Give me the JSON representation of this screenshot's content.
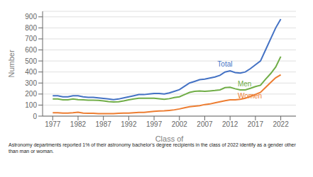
{
  "chart_data": {
    "type": "line",
    "x": [
      1977,
      1978,
      1979,
      1980,
      1981,
      1982,
      1983,
      1984,
      1985,
      1986,
      1987,
      1988,
      1989,
      1990,
      1991,
      1992,
      1993,
      1994,
      1995,
      1996,
      1997,
      1998,
      1999,
      2000,
      2001,
      2002,
      2003,
      2004,
      2005,
      2006,
      2007,
      2008,
      2009,
      2010,
      2011,
      2012,
      2013,
      2014,
      2015,
      2016,
      2017,
      2018,
      2019,
      2020,
      2021,
      2022
    ],
    "series": [
      {
        "name": "Total",
        "color": "#4472c4",
        "values": [
          185,
          185,
          175,
          175,
          185,
          185,
          175,
          170,
          170,
          165,
          160,
          155,
          150,
          155,
          165,
          175,
          185,
          195,
          195,
          200,
          205,
          205,
          200,
          210,
          225,
          240,
          270,
          300,
          315,
          330,
          335,
          345,
          355,
          370,
          400,
          410,
          395,
          390,
          400,
          430,
          465,
          500,
          600,
          700,
          800,
          880
        ]
      },
      {
        "name": "Men",
        "color": "#70ad47",
        "values": [
          155,
          155,
          148,
          148,
          155,
          150,
          148,
          145,
          145,
          143,
          138,
          132,
          128,
          130,
          138,
          148,
          155,
          162,
          162,
          162,
          162,
          158,
          152,
          158,
          168,
          175,
          195,
          215,
          225,
          228,
          225,
          228,
          232,
          238,
          258,
          262,
          248,
          238,
          238,
          252,
          268,
          280,
          335,
          385,
          445,
          540
        ]
      },
      {
        "name": "Women",
        "color": "#ed7d31",
        "values": [
          30,
          30,
          27,
          27,
          30,
          35,
          27,
          25,
          25,
          22,
          22,
          23,
          22,
          25,
          27,
          27,
          30,
          33,
          33,
          38,
          43,
          47,
          48,
          52,
          57,
          65,
          75,
          85,
          90,
          95,
          105,
          110,
          120,
          130,
          140,
          148,
          148,
          152,
          162,
          178,
          197,
          215,
          260,
          305,
          348,
          375
        ]
      }
    ],
    "xlabel": "Class of",
    "ylabel": "Number",
    "xlim": [
      1975,
      2025
    ],
    "ylim": [
      0,
      950
    ],
    "xticks": [
      1977,
      1982,
      1987,
      1992,
      1997,
      2002,
      2007,
      2012,
      2017,
      2022
    ],
    "yticks": [
      0,
      100,
      200,
      300,
      400,
      500,
      600,
      700,
      800,
      900
    ],
    "grid": "y",
    "annotations": [
      {
        "text": "Total",
        "x": 2009.5,
        "y": 435,
        "color": "#4472c4"
      },
      {
        "text": "Men",
        "x": 2013.5,
        "y": 258,
        "color": "#70ad47"
      },
      {
        "text": "Women",
        "x": 2013.5,
        "y": 148,
        "color": "#ed7d31"
      }
    ],
    "footnote": [
      "Astronomy departments reported 1% of their astronomy bachelor's degree recipients in the class of 2022 identify as a gender other",
      "than man or woman."
    ]
  }
}
